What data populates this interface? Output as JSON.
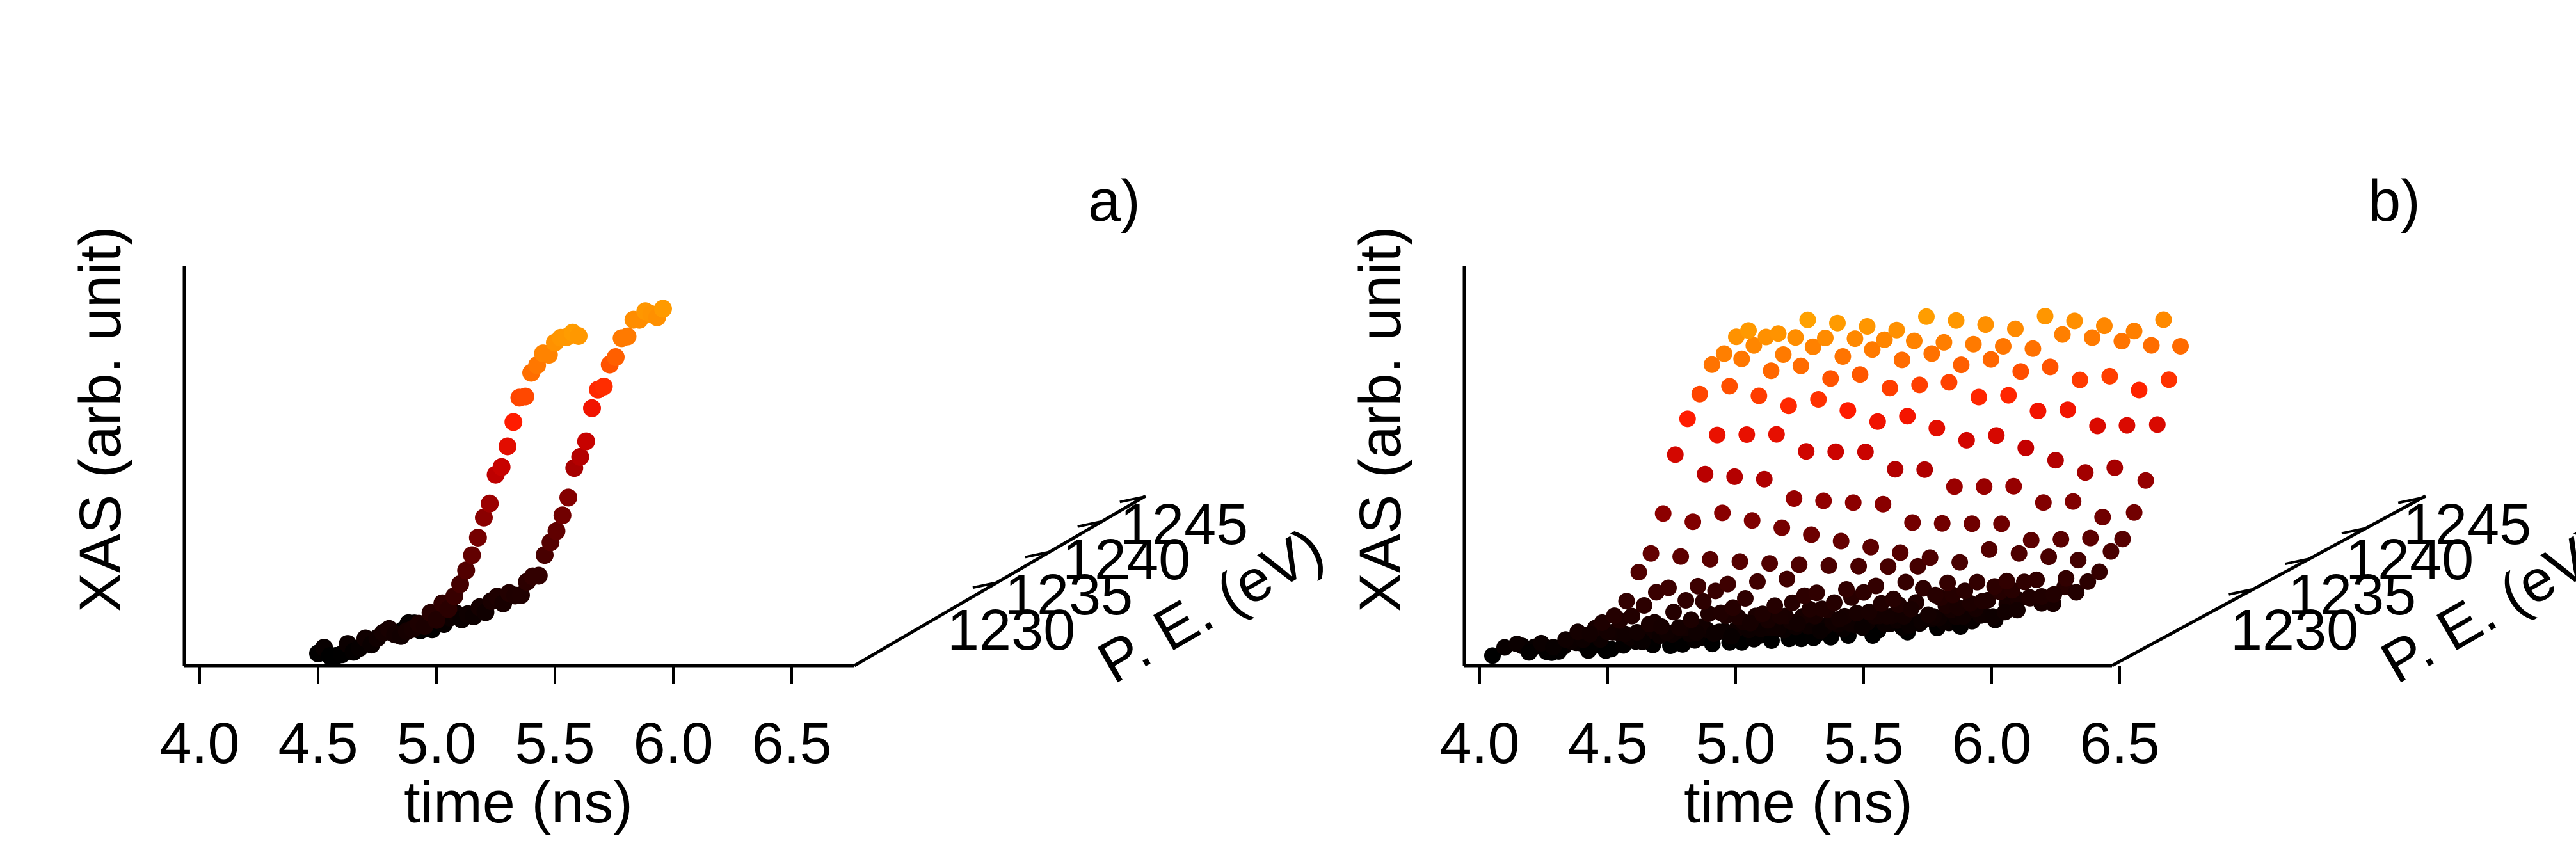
{
  "panels": [
    {
      "panel_label": "a)",
      "ylabel": "XAS (arb. unit)",
      "xlabel": "time (ns)",
      "zlabel": "P. E. (eV)",
      "x_ticks": [
        "4.0",
        "4.5",
        "5.0",
        "5.5",
        "6.0",
        "6.5"
      ],
      "z_ticks": [
        "1230",
        "1235",
        "1240",
        "1245"
      ]
    },
    {
      "panel_label": "b)",
      "ylabel": "XAS (arb. unit)",
      "xlabel": "time (ns)",
      "zlabel": "P. E. (eV)",
      "x_ticks": [
        "4.0",
        "4.5",
        "5.0",
        "5.5",
        "6.0",
        "6.5"
      ],
      "z_ticks": [
        "1230",
        "1235",
        "1240",
        "1245"
      ]
    }
  ],
  "colormap": [
    "#000000",
    "#2a0000",
    "#5a0000",
    "#8b0000",
    "#c40000",
    "#ff1a00",
    "#ff6a00",
    "#ff9f00",
    "#ffd000",
    "#ffff00"
  ],
  "chart_data": [
    {
      "type": "scatter",
      "panel": "a)",
      "title": "",
      "xlabel": "time (ns)",
      "ylabel": "XAS (arb. unit)",
      "zlabel": "P. E. (eV)",
      "xlim": [
        3.97,
        6.7
      ],
      "zlim": [
        1225,
        1250
      ],
      "ylim": [
        0,
        1
      ],
      "yscale": "arbitrary, no ticks",
      "grid": false,
      "color": "heat colormap by XAS intensity (black → red → yellow)",
      "traces": [
        {
          "pe_ev": 1225,
          "t_start_ns": 4.5,
          "t_end_ns": 5.6,
          "n_points": 45,
          "edge_center_ns": 5.25
        },
        {
          "pe_ev": 1250,
          "t_start_ns": 4.6,
          "t_end_ns": 5.7,
          "n_points": 45,
          "edge_center_ns": 5.35
        }
      ]
    },
    {
      "type": "scatter",
      "panel": "b)",
      "title": "",
      "xlabel": "time (ns)",
      "ylabel": "XAS (arb. unit)",
      "zlabel": "P. E. (eV)",
      "xlim": [
        3.97,
        6.5
      ],
      "zlim": [
        1225,
        1250
      ],
      "ylim": [
        0,
        1
      ],
      "yscale": "arbitrary, no ticks",
      "grid": false,
      "color": "heat colormap by XAS intensity (black → red → yellow)",
      "traces": [
        {
          "pe_ev": 1225.0,
          "t_start_ns": 4.05,
          "t_end_ns": 5.05,
          "n_points": 22,
          "edge_center_ns": 4.75
        },
        {
          "pe_ev": 1226.7,
          "t_start_ns": 4.15,
          "t_end_ns": 5.15,
          "n_points": 22,
          "edge_center_ns": 4.86
        },
        {
          "pe_ev": 1228.3,
          "t_start_ns": 4.25,
          "t_end_ns": 5.25,
          "n_points": 22,
          "edge_center_ns": 4.97
        },
        {
          "pe_ev": 1230.0,
          "t_start_ns": 4.35,
          "t_end_ns": 5.35,
          "n_points": 22,
          "edge_center_ns": 5.08
        },
        {
          "pe_ev": 1231.7,
          "t_start_ns": 4.45,
          "t_end_ns": 5.45,
          "n_points": 22,
          "edge_center_ns": 5.19
        },
        {
          "pe_ev": 1233.3,
          "t_start_ns": 4.55,
          "t_end_ns": 5.55,
          "n_points": 22,
          "edge_center_ns": 5.3
        },
        {
          "pe_ev": 1235.0,
          "t_start_ns": 4.65,
          "t_end_ns": 5.65,
          "n_points": 22,
          "edge_center_ns": 5.41
        },
        {
          "pe_ev": 1236.7,
          "t_start_ns": 4.75,
          "t_end_ns": 5.75,
          "n_points": 22,
          "edge_center_ns": 5.52
        },
        {
          "pe_ev": 1238.3,
          "t_start_ns": 4.85,
          "t_end_ns": 5.85,
          "n_points": 22,
          "edge_center_ns": 5.63
        },
        {
          "pe_ev": 1240.0,
          "t_start_ns": 4.95,
          "t_end_ns": 5.95,
          "n_points": 22,
          "edge_center_ns": 5.74
        },
        {
          "pe_ev": 1241.7,
          "t_start_ns": 5.05,
          "t_end_ns": 6.05,
          "n_points": 22,
          "edge_center_ns": 5.85
        },
        {
          "pe_ev": 1243.3,
          "t_start_ns": 5.15,
          "t_end_ns": 6.15,
          "n_points": 22,
          "edge_center_ns": 5.96
        },
        {
          "pe_ev": 1245.0,
          "t_start_ns": 5.25,
          "t_end_ns": 6.25,
          "n_points": 22,
          "edge_center_ns": 6.07
        },
        {
          "pe_ev": 1246.7,
          "t_start_ns": 5.35,
          "t_end_ns": 6.35,
          "n_points": 22,
          "edge_center_ns": 6.18
        },
        {
          "pe_ev": 1248.3,
          "t_start_ns": 5.45,
          "t_end_ns": 6.45,
          "n_points": 22,
          "edge_center_ns": 6.29
        },
        {
          "pe_ev": 1250.0,
          "t_start_ns": 5.55,
          "t_end_ns": 6.5,
          "n_points": 22,
          "edge_center_ns": 6.4
        }
      ]
    }
  ]
}
